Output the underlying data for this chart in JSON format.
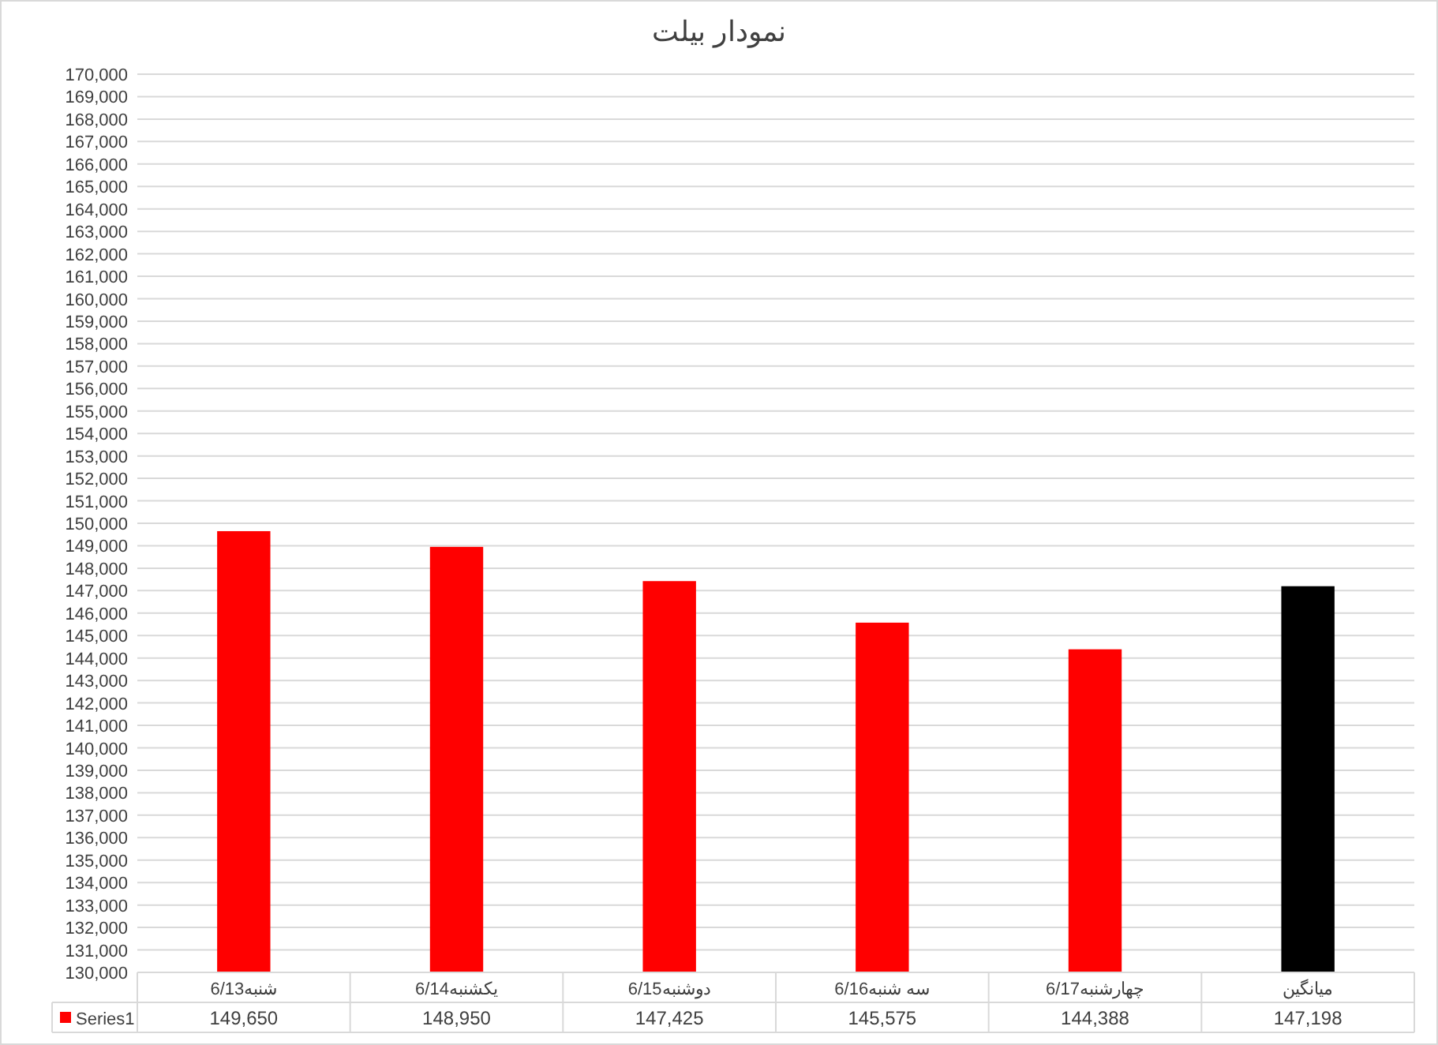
{
  "chart_data": {
    "type": "bar",
    "title": "نمودار بیلت",
    "categories": [
      "شنبه6/13",
      "یکشنبه6/14",
      "دوشنبه6/15",
      "سه شنبه6/16",
      "چهارشنبه6/17",
      "میانگین"
    ],
    "series": [
      {
        "name": "Series1",
        "color": "#ff0000",
        "colors": [
          "#ff0000",
          "#ff0000",
          "#ff0000",
          "#ff0000",
          "#ff0000",
          "#000000"
        ],
        "values": [
          149650,
          148950,
          147425,
          145575,
          144388,
          147198
        ],
        "value_labels": [
          "149,650",
          "148,950",
          "147,425",
          "145,575",
          "144,388",
          "147,198"
        ]
      }
    ],
    "ylim": [
      130000,
      170000
    ],
    "yticks": [
      {
        "value": 130000,
        "label": "130,000"
      },
      {
        "value": 131000,
        "label": "131,000"
      },
      {
        "value": 132000,
        "label": "132,000"
      },
      {
        "value": 133000,
        "label": "133,000"
      },
      {
        "value": 134000,
        "label": "134,000"
      },
      {
        "value": 135000,
        "label": "135,000"
      },
      {
        "value": 136000,
        "label": "136,000"
      },
      {
        "value": 137000,
        "label": "137,000"
      },
      {
        "value": 138000,
        "label": "138,000"
      },
      {
        "value": 139000,
        "label": "139,000"
      },
      {
        "value": 140000,
        "label": "140,000"
      },
      {
        "value": 141000,
        "label": "141,000"
      },
      {
        "value": 142000,
        "label": "142,000"
      },
      {
        "value": 143000,
        "label": "143,000"
      },
      {
        "value": 144000,
        "label": "144,000"
      },
      {
        "value": 145000,
        "label": "145,000"
      },
      {
        "value": 146000,
        "label": "146,000"
      },
      {
        "value": 147000,
        "label": "147,000"
      },
      {
        "value": 148000,
        "label": "148,000"
      },
      {
        "value": 149000,
        "label": "149,000"
      },
      {
        "value": 150000,
        "label": "150,000"
      },
      {
        "value": 151000,
        "label": "151,000"
      },
      {
        "value": 152000,
        "label": "152,000"
      },
      {
        "value": 153000,
        "label": "153,000"
      },
      {
        "value": 154000,
        "label": "154,000"
      },
      {
        "value": 155000,
        "label": "155,000"
      },
      {
        "value": 156000,
        "label": "156,000"
      },
      {
        "value": 157000,
        "label": "157,000"
      },
      {
        "value": 158000,
        "label": "158,000"
      },
      {
        "value": 159000,
        "label": "159,000"
      },
      {
        "value": 160000,
        "label": "160,000"
      },
      {
        "value": 161000,
        "label": "161,000"
      },
      {
        "value": 162000,
        "label": "162,000"
      },
      {
        "value": 163000,
        "label": "163,000"
      },
      {
        "value": 164000,
        "label": "164,000"
      },
      {
        "value": 165000,
        "label": "165,000"
      },
      {
        "value": 166000,
        "label": "166,000"
      },
      {
        "value": 167000,
        "label": "167,000"
      },
      {
        "value": 168000,
        "label": "168,000"
      },
      {
        "value": 169000,
        "label": "169,000"
      },
      {
        "value": 170000,
        "label": "170,000"
      }
    ],
    "grid": "y",
    "legend": "bottom left"
  }
}
